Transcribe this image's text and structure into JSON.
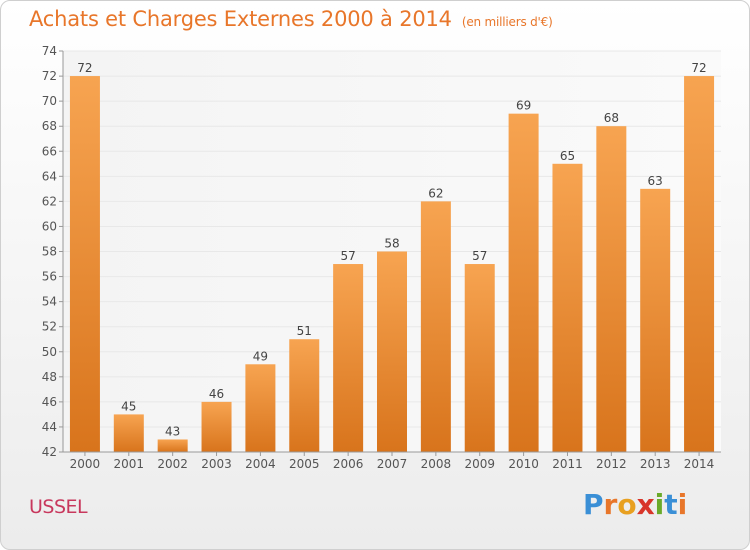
{
  "header": {
    "title": "Achats et Charges Externes 2000 à 2014",
    "unit": "(en milliers d'€)"
  },
  "footer": {
    "commune": "USSEL",
    "brand": "Proxiti"
  },
  "chart_data": {
    "type": "bar",
    "title": "Achats et Charges Externes 2000 à 2014",
    "subtitle": "(en milliers d'€)",
    "categories": [
      "2000",
      "2001",
      "2002",
      "2003",
      "2004",
      "2005",
      "2006",
      "2007",
      "2008",
      "2009",
      "2010",
      "2011",
      "2012",
      "2013",
      "2014"
    ],
    "values": [
      72,
      45,
      43,
      46,
      49,
      51,
      57,
      58,
      62,
      57,
      69,
      65,
      68,
      63,
      72
    ],
    "ylim": [
      42,
      74
    ],
    "yticks": [
      42,
      44,
      46,
      48,
      50,
      52,
      54,
      56,
      58,
      60,
      62,
      64,
      66,
      68,
      70,
      72,
      74
    ],
    "grid": true,
    "data_labels": true,
    "colors": {
      "bar_top": "#f7a451",
      "bar_bottom": "#d8741c",
      "label": "#444444",
      "grid": "#e8e8e8"
    }
  }
}
